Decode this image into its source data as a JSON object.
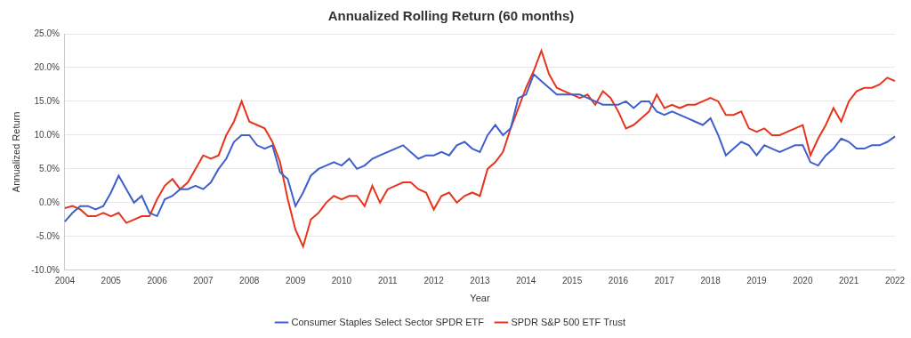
{
  "chart_data": {
    "type": "line",
    "title": "Annualized Rolling Return (60 months)",
    "x_label": "Year",
    "y_label": "Annualized Return",
    "categories": [
      "2004",
      null,
      null,
      null,
      null,
      null,
      "2005",
      null,
      null,
      null,
      null,
      null,
      "2006",
      null,
      null,
      null,
      null,
      null,
      "2007",
      null,
      null,
      null,
      null,
      null,
      "2008",
      null,
      null,
      null,
      null,
      null,
      "2009",
      null,
      null,
      null,
      null,
      null,
      "2010",
      null,
      null,
      null,
      null,
      null,
      "2011",
      null,
      null,
      null,
      null,
      null,
      "2012",
      null,
      null,
      null,
      null,
      null,
      "2013",
      null,
      null,
      null,
      null,
      null,
      "2014",
      null,
      null,
      null,
      null,
      null,
      "2015",
      null,
      null,
      null,
      null,
      null,
      "2016",
      null,
      null,
      null,
      null,
      null,
      "2017",
      null,
      null,
      null,
      null,
      null,
      "2018",
      null,
      null,
      null,
      null,
      null,
      "2019",
      null,
      null,
      null,
      null,
      null,
      "2020",
      null,
      null,
      null,
      null,
      null,
      "2021",
      null,
      null,
      null,
      null,
      null,
      "2022"
    ],
    "series": [
      {
        "name": "Consumer Staples Select Sector SPDR ETF",
        "color": "#3f5fcb",
        "values": [
          -2.8,
          -1.5,
          -0.5,
          -0.5,
          -1.0,
          -0.5,
          1.5,
          4.0,
          2.0,
          0.0,
          1.0,
          -1.5,
          -2.0,
          0.5,
          1.0,
          2.0,
          2.0,
          2.5,
          2.0,
          3.0,
          5.0,
          6.5,
          9.0,
          10.0,
          10.0,
          8.5,
          8.0,
          8.5,
          4.5,
          3.5,
          -0.5,
          1.5,
          4.0,
          5.0,
          5.5,
          6.0,
          5.5,
          6.5,
          5.0,
          5.5,
          6.5,
          7.0,
          7.5,
          8.0,
          8.5,
          7.5,
          6.5,
          7.0,
          7.0,
          7.5,
          7.0,
          8.5,
          9.0,
          8.0,
          7.5,
          10.0,
          11.5,
          10.0,
          11.0,
          15.5,
          16.0,
          19.0,
          18.0,
          17.0,
          16.0,
          16.0,
          16.0,
          16.0,
          15.5,
          15.0,
          14.5,
          14.5,
          14.5,
          15.0,
          14.0,
          15.0,
          15.0,
          13.5,
          13.0,
          13.5,
          13.0,
          12.5,
          12.0,
          11.5,
          12.5,
          10.0,
          7.0,
          8.0,
          9.0,
          8.5,
          7.0,
          8.5,
          8.0,
          7.5,
          8.0,
          8.5,
          8.5,
          6.0,
          5.5,
          7.0,
          8.0,
          9.5,
          9.0,
          8.0,
          8.0,
          8.5,
          8.5,
          9.0,
          9.8
        ]
      },
      {
        "name": "SPDR S&P 500 ETF Trust",
        "color": "#e8341c",
        "values": [
          -0.8,
          -0.5,
          -1.0,
          -2.0,
          -2.0,
          -1.5,
          -2.0,
          -1.5,
          -3.0,
          -2.5,
          -2.0,
          -2.0,
          0.5,
          2.5,
          3.5,
          2.0,
          3.0,
          5.0,
          7.0,
          6.5,
          7.0,
          10.0,
          12.0,
          15.0,
          12.0,
          11.5,
          11.0,
          9.0,
          6.0,
          0.5,
          -4.0,
          -6.5,
          -2.5,
          -1.5,
          0.0,
          1.0,
          0.5,
          1.0,
          1.0,
          -0.5,
          2.5,
          0.0,
          2.0,
          2.5,
          3.0,
          3.0,
          2.0,
          1.5,
          -1.0,
          1.0,
          1.5,
          0.0,
          1.0,
          1.5,
          1.0,
          5.0,
          6.0,
          7.5,
          11.0,
          14.0,
          17.0,
          19.5,
          22.5,
          19.0,
          17.0,
          16.5,
          16.0,
          15.5,
          16.0,
          14.5,
          16.5,
          15.5,
          13.5,
          11.0,
          11.5,
          12.5,
          13.5,
          16.0,
          14.0,
          14.5,
          14.0,
          14.5,
          14.5,
          15.0,
          15.5,
          15.0,
          13.0,
          13.0,
          13.5,
          11.0,
          10.5,
          11.0,
          10.0,
          10.0,
          10.5,
          11.0,
          11.5,
          7.0,
          9.5,
          11.5,
          14.0,
          12.0,
          15.0,
          16.5,
          17.0,
          17.0,
          17.5,
          18.5,
          18.0
        ]
      }
    ],
    "ylim": [
      -10,
      25
    ],
    "yticks": [
      {
        "value": -10,
        "label": "-10.0%"
      },
      {
        "value": -5,
        "label": "-5.0%"
      },
      {
        "value": 0,
        "label": "0.0%"
      },
      {
        "value": 5,
        "label": "5.0%"
      },
      {
        "value": 10,
        "label": "10.0%"
      },
      {
        "value": 15,
        "label": "15.0%"
      },
      {
        "value": 20,
        "label": "20.0%"
      },
      {
        "value": 25,
        "label": "25.0%"
      }
    ],
    "grid": true,
    "legend": "bottom"
  }
}
